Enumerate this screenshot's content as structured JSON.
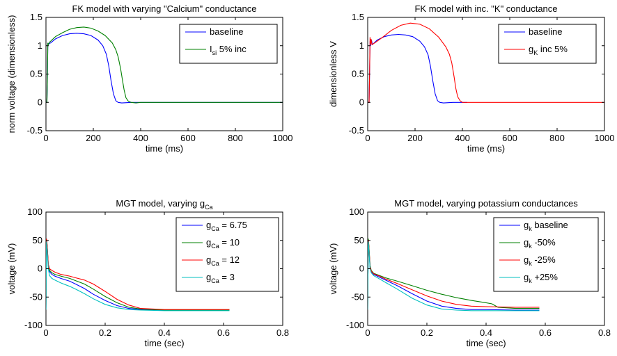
{
  "chart_data": [
    {
      "type": "line",
      "title": "FK model with varying \"Calcium\" conductance",
      "xlabel": "time (ms)",
      "ylabel": "norm voltage (dimensionless)",
      "xlim": [
        0,
        1000
      ],
      "ylim": [
        -0.5,
        1.5
      ],
      "xticks": [
        0,
        200,
        400,
        600,
        800,
        1000
      ],
      "yticks": [
        -0.5,
        0,
        0.5,
        1,
        1.5
      ],
      "xtick_labels": [
        "0",
        "200",
        "400",
        "600",
        "800",
        "1000"
      ],
      "ytick_labels": [
        "-0.5",
        "0",
        "0.5",
        "1",
        "1.5"
      ],
      "grid": false,
      "legend_position": "top-right",
      "series": [
        {
          "name": "baseline",
          "color": "#0000ff",
          "x": [
            0,
            4,
            6,
            8,
            10,
            14,
            20,
            40,
            70,
            100,
            130,
            160,
            190,
            220,
            240,
            255,
            265,
            275,
            285,
            295,
            305,
            320,
            360,
            1000
          ],
          "y": [
            0,
            0,
            0.35,
            1.05,
            1.02,
            1.04,
            1.05,
            1.12,
            1.18,
            1.21,
            1.22,
            1.21,
            1.18,
            1.1,
            1.0,
            0.85,
            0.65,
            0.38,
            0.15,
            0.03,
            0.0,
            -0.01,
            0.0,
            0.0
          ]
        },
        {
          "name": "I_si 5% inc",
          "label_main": "I",
          "label_sub": "si",
          "label_rest": " 5% inc",
          "color": "#008000",
          "x": [
            0,
            4,
            6,
            8,
            10,
            14,
            20,
            40,
            70,
            100,
            130,
            160,
            190,
            220,
            250,
            280,
            295,
            305,
            315,
            322,
            330,
            338,
            348,
            360,
            380,
            400,
            1000
          ],
          "y": [
            0,
            0,
            0.35,
            1.05,
            1.02,
            1.06,
            1.08,
            1.16,
            1.23,
            1.29,
            1.32,
            1.33,
            1.31,
            1.26,
            1.18,
            1.05,
            0.93,
            0.8,
            0.6,
            0.42,
            0.22,
            0.08,
            0.02,
            0.0,
            -0.01,
            0.0,
            0.0
          ]
        }
      ]
    },
    {
      "type": "line",
      "title": "FK model with inc. \"K\" conductance",
      "xlabel": "time (ms)",
      "ylabel": "dimensionless V",
      "xlim": [
        0,
        1000
      ],
      "ylim": [
        -0.5,
        1.5
      ],
      "xticks": [
        0,
        200,
        400,
        600,
        800,
        1000
      ],
      "yticks": [
        -0.5,
        0,
        0.5,
        1,
        1.5
      ],
      "xtick_labels": [
        "0",
        "200",
        "400",
        "600",
        "800",
        "1000"
      ],
      "ytick_labels": [
        "-0.5",
        "0",
        "0.5",
        "1",
        "1.5"
      ],
      "grid": false,
      "legend_position": "top-right",
      "series": [
        {
          "name": "baseline",
          "color": "#0000ff",
          "x": [
            0,
            6,
            8,
            10,
            12,
            16,
            20,
            40,
            70,
            100,
            130,
            160,
            190,
            220,
            240,
            255,
            265,
            275,
            285,
            295,
            305,
            320,
            360,
            420
          ],
          "y": [
            0,
            0,
            0.5,
            1.08,
            1.0,
            1.1,
            1.02,
            1.1,
            1.16,
            1.19,
            1.2,
            1.19,
            1.16,
            1.08,
            0.98,
            0.84,
            0.64,
            0.38,
            0.15,
            0.03,
            0.0,
            -0.01,
            0.0,
            0.0
          ]
        },
        {
          "name": "g_K inc 5%",
          "label_main": "g",
          "label_sub": "K",
          "label_rest": " inc 5%",
          "color": "#ff0000",
          "x": [
            0,
            6,
            8,
            10,
            12,
            14,
            18,
            30,
            60,
            100,
            140,
            180,
            220,
            260,
            300,
            330,
            345,
            355,
            365,
            372,
            380,
            390,
            400,
            420,
            1000
          ],
          "y": [
            0,
            0,
            0.5,
            1.15,
            1.02,
            1.12,
            1.02,
            1.05,
            1.14,
            1.27,
            1.36,
            1.4,
            1.38,
            1.3,
            1.15,
            0.98,
            0.85,
            0.7,
            0.45,
            0.25,
            0.1,
            0.03,
            0.0,
            0.0,
            0.0
          ]
        }
      ]
    },
    {
      "type": "line",
      "title": "MGT model, varying g_Ca",
      "title_main": "MGT model, varying g",
      "title_sub": "Ca",
      "xlabel": "time (sec)",
      "ylabel": "voltage (mV)",
      "xlim": [
        0,
        0.8
      ],
      "ylim": [
        -100,
        100
      ],
      "xticks": [
        0,
        0.2,
        0.4,
        0.6,
        0.8
      ],
      "yticks": [
        -100,
        -50,
        0,
        50,
        100
      ],
      "xtick_labels": [
        "0",
        "0.2",
        "0.4",
        "0.6",
        "0.8"
      ],
      "ytick_labels": [
        "-100",
        "-50",
        "0",
        "50",
        "100"
      ],
      "grid": false,
      "legend_position": "top-right",
      "series": [
        {
          "name": "g_Ca = 6.75",
          "label_main": "g",
          "label_sub": "Ca",
          "label_rest": " = 6.75",
          "color": "#0000ff",
          "x": [
            0,
            0.002,
            0.004,
            0.008,
            0.012,
            0.02,
            0.03,
            0.05,
            0.08,
            0.1,
            0.13,
            0.16,
            0.2,
            0.24,
            0.28,
            0.32,
            0.4,
            0.5,
            0.62
          ],
          "y": [
            -72,
            50,
            40,
            5,
            -5,
            -10,
            -13,
            -17,
            -22,
            -27,
            -35,
            -45,
            -56,
            -65,
            -70,
            -72,
            -73,
            -73,
            -73
          ]
        },
        {
          "name": "g_Ca = 10",
          "label_main": "g",
          "label_sub": "Ca",
          "label_rest": " = 10",
          "color": "#008000",
          "x": [
            0,
            0.002,
            0.004,
            0.008,
            0.012,
            0.02,
            0.03,
            0.05,
            0.08,
            0.1,
            0.13,
            0.16,
            0.2,
            0.24,
            0.28,
            0.32,
            0.4,
            0.5,
            0.62
          ],
          "y": [
            -72,
            52,
            42,
            6,
            -3,
            -7,
            -10,
            -13,
            -17,
            -21,
            -27,
            -36,
            -49,
            -60,
            -68,
            -71,
            -73,
            -73,
            -73
          ]
        },
        {
          "name": "g_Ca = 12",
          "label_main": "g",
          "label_sub": "Ca",
          "label_rest": " = 12",
          "color": "#ff0000",
          "x": [
            0,
            0.002,
            0.004,
            0.008,
            0.012,
            0.02,
            0.03,
            0.05,
            0.08,
            0.1,
            0.13,
            0.16,
            0.2,
            0.24,
            0.28,
            0.32,
            0.4,
            0.5,
            0.62
          ],
          "y": [
            -72,
            53,
            43,
            8,
            0,
            -3,
            -6,
            -10,
            -13,
            -16,
            -20,
            -27,
            -40,
            -54,
            -64,
            -70,
            -72,
            -72,
            -72
          ]
        },
        {
          "name": "g_Ca = 3",
          "label_main": "g",
          "label_sub": "Ca",
          "label_rest": " = 3",
          "color": "#00bfbf",
          "x": [
            0,
            0.002,
            0.004,
            0.008,
            0.012,
            0.02,
            0.03,
            0.05,
            0.08,
            0.1,
            0.13,
            0.16,
            0.2,
            0.24,
            0.28,
            0.32,
            0.4,
            0.5,
            0.62
          ],
          "y": [
            -72,
            48,
            35,
            0,
            -12,
            -17,
            -20,
            -25,
            -31,
            -36,
            -44,
            -53,
            -63,
            -69,
            -72,
            -73,
            -74,
            -74,
            -74
          ]
        }
      ]
    },
    {
      "type": "line",
      "title": "MGT model, varying potassium conductances",
      "xlabel": "time (sec)",
      "ylabel": "voltage (mV)",
      "xlim": [
        0,
        0.8
      ],
      "ylim": [
        -100,
        100
      ],
      "xticks": [
        0,
        0.2,
        0.4,
        0.6,
        0.8
      ],
      "yticks": [
        -100,
        -50,
        0,
        50,
        100
      ],
      "xtick_labels": [
        "0",
        "0.2",
        "0.4",
        "0.6",
        "0.8"
      ],
      "ytick_labels": [
        "-100",
        "-50",
        "0",
        "50",
        "100"
      ],
      "grid": false,
      "legend_position": "top-right",
      "series": [
        {
          "name": "g_k baseline",
          "label_main": "g",
          "label_sub": "k",
          "label_rest": " baseline",
          "color": "#0000ff",
          "x": [
            0,
            0.002,
            0.004,
            0.008,
            0.012,
            0.02,
            0.04,
            0.06,
            0.1,
            0.15,
            0.2,
            0.25,
            0.3,
            0.35,
            0.4,
            0.5,
            0.58
          ],
          "y": [
            -72,
            50,
            38,
            2,
            -5,
            -10,
            -15,
            -20,
            -30,
            -44,
            -57,
            -66,
            -70,
            -72,
            -72,
            -73,
            -73
          ]
        },
        {
          "name": "g_k -50%",
          "label_main": "g",
          "label_sub": "k",
          "label_rest": " -50%",
          "color": "#008000",
          "x": [
            0,
            0.002,
            0.004,
            0.008,
            0.012,
            0.02,
            0.04,
            0.06,
            0.1,
            0.15,
            0.2,
            0.25,
            0.3,
            0.35,
            0.4,
            0.42,
            0.44,
            0.5,
            0.58
          ],
          "y": [
            -72,
            53,
            42,
            6,
            -3,
            -8,
            -12,
            -16,
            -22,
            -30,
            -38,
            -45,
            -51,
            -56,
            -60,
            -62,
            -68,
            -70,
            -70
          ]
        },
        {
          "name": "g_k -25%",
          "label_main": "g",
          "label_sub": "k",
          "label_rest": " -25%",
          "color": "#ff0000",
          "x": [
            0,
            0.002,
            0.004,
            0.008,
            0.012,
            0.02,
            0.04,
            0.06,
            0.1,
            0.15,
            0.2,
            0.25,
            0.3,
            0.35,
            0.4,
            0.5,
            0.58
          ],
          "y": [
            -72,
            51,
            40,
            4,
            -4,
            -9,
            -13,
            -18,
            -26,
            -37,
            -48,
            -57,
            -63,
            -66,
            -67,
            -68,
            -68
          ]
        },
        {
          "name": "g_k +25%",
          "label_main": "g",
          "label_sub": "k",
          "label_rest": " +25%",
          "color": "#00bfbf",
          "x": [
            0,
            0.002,
            0.004,
            0.008,
            0.012,
            0.02,
            0.04,
            0.06,
            0.1,
            0.15,
            0.2,
            0.25,
            0.3,
            0.35,
            0.4,
            0.5,
            0.58
          ],
          "y": [
            -72,
            48,
            36,
            0,
            -7,
            -12,
            -18,
            -24,
            -36,
            -52,
            -64,
            -71,
            -73,
            -74,
            -74,
            -74,
            -74
          ]
        }
      ]
    }
  ]
}
